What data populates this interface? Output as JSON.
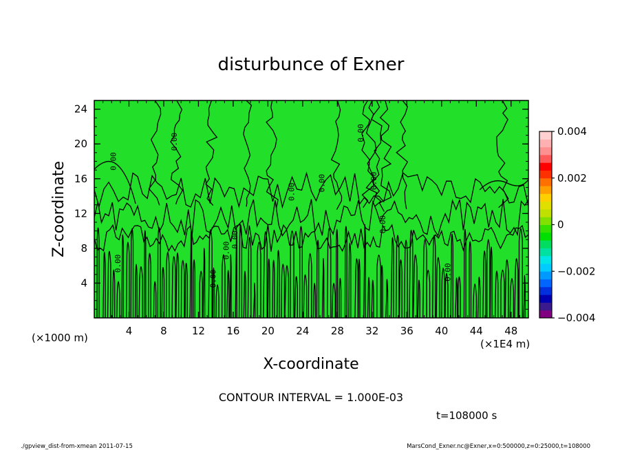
{
  "chart_data": {
    "type": "heatmap",
    "title": "disturbunce of Exner",
    "xlabel": "X-coordinate",
    "ylabel": "Z-coordinate",
    "x_ticks": [
      "4",
      "8",
      "12",
      "16",
      "20",
      "24",
      "28",
      "32",
      "36",
      "40",
      "44",
      "48"
    ],
    "y_ticks": [
      "4",
      "8",
      "12",
      "16",
      "20",
      "24"
    ],
    "xlim": [
      0,
      50
    ],
    "ylim": [
      0,
      25
    ],
    "x_unit": "(×1E4 m)",
    "y_unit": "(×1000 m)",
    "colorbar": {
      "min": -0.004,
      "max": 0.004,
      "tick_labels": [
        "0.004",
        "0.002",
        "0",
        "−0.002",
        "−0.004"
      ],
      "tick_values": [
        0.004,
        0.002,
        0,
        -0.002,
        -0.004
      ],
      "colors": [
        "#800080",
        "#3a1a8c",
        "#0000b0",
        "#0030dd",
        "#0066ff",
        "#0099ff",
        "#00ccff",
        "#00e5e5",
        "#00e0a0",
        "#00dd60",
        "#00e000",
        "#33e000",
        "#80e000",
        "#c0e000",
        "#e0e000",
        "#ffd000",
        "#ffa000",
        "#ff7000",
        "#ff3000",
        "#ff0000",
        "#ff5a5a",
        "#ff9090",
        "#ffb0b0",
        "#ffd0d0"
      ]
    },
    "field_color": "#22e02a",
    "contour_labels": [
      "0.00",
      "0.00",
      "0.00",
      "0.00",
      "0.00",
      "0.00",
      "0.00",
      "0.00",
      "0.00",
      "0.00",
      "0.00",
      "0.00"
    ],
    "contour_interval_text": "CONTOUR INTERVAL = 1.000E-03",
    "time_text": "t=108000 s"
  },
  "footer": {
    "left": "./gpview_dist-from-xmean   2011-07-15",
    "right": "MarsCond_Exner.nc@Exner,x=0:500000,z=0:25000,t=108000"
  }
}
